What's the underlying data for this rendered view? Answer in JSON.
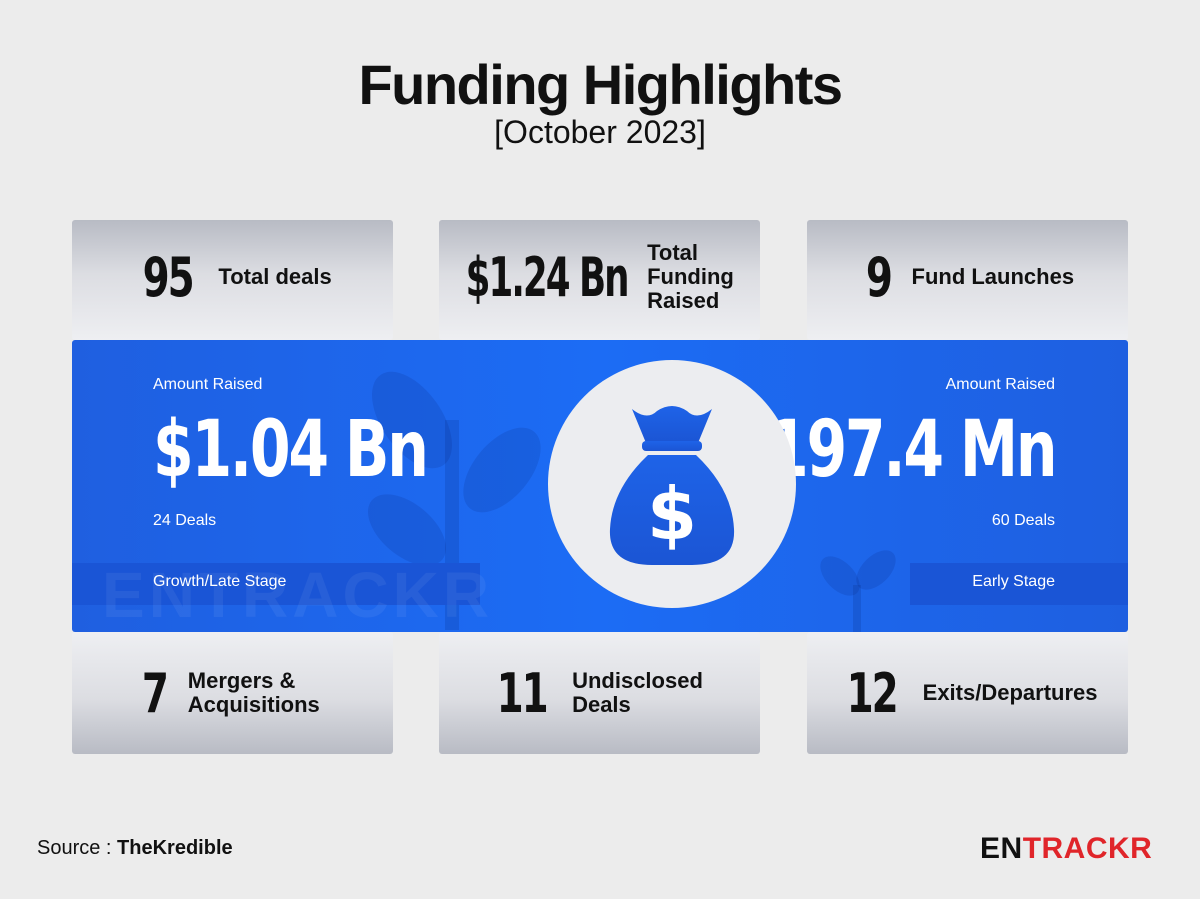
{
  "header": {
    "title": "Funding Highlights",
    "subtitle": "[October 2023]"
  },
  "top_cards": [
    {
      "value": "95",
      "label": "Total deals"
    },
    {
      "value": "$1.24 Bn",
      "label": "Total Funding Raised"
    },
    {
      "value": "9",
      "label": "Fund Launches"
    }
  ],
  "middle": {
    "left": {
      "caption": "Amount Raised",
      "amount": "$1.04 Bn",
      "deals": "24 Deals",
      "stage": "Growth/Late Stage"
    },
    "right": {
      "caption": "Amount Raised",
      "amount": "$197.4 Mn",
      "deals": "60 Deals",
      "stage": "Early Stage"
    },
    "center_icon": "money-bag-icon",
    "watermark": "ENTRACKR"
  },
  "bottom_cards": [
    {
      "value": "7",
      "label": "Mergers & Acquisitions"
    },
    {
      "value": "11",
      "label": "Undisclosed Deals"
    },
    {
      "value": "12",
      "label": "Exits/Departures"
    }
  ],
  "footer": {
    "source_prefix": "Source : ",
    "source_name": "TheKredible",
    "logo_part1": "EN",
    "logo_part2": "TRACKR"
  },
  "colors": {
    "band_blue": "#1c6cf5",
    "card_grey": "#dcdde2",
    "logo_red": "#e0252a"
  }
}
